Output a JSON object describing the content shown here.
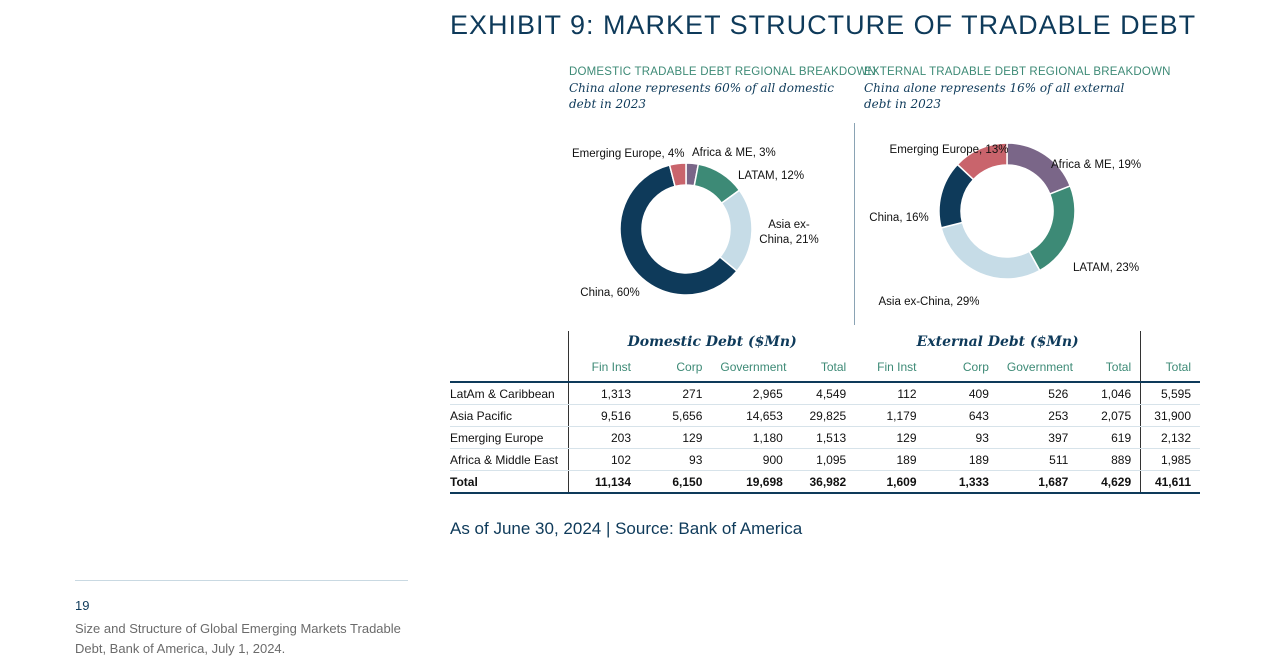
{
  "title": "EXHIBIT 9: MARKET STRUCTURE OF TRADABLE DEBT",
  "colors": {
    "navy": "#0e3a5a",
    "teal": "#3d8a76",
    "lightblue": "#c6dce7",
    "pink": "#c9646c",
    "purple": "#7a6688"
  },
  "charts": {
    "domestic": {
      "caption": "DOMESTIC TRADABLE DEBT REGIONAL BREAKDOWN",
      "subtitle": "China alone represents 60% of all domestic debt in 2023"
    },
    "external": {
      "caption": "EXTERNAL TRADABLE DEBT REGIONAL BREAKDOWN",
      "subtitle": "China alone represents 16% of all external debt in 2023"
    }
  },
  "chart_data": [
    {
      "type": "pie",
      "title": "DOMESTIC TRADABLE DEBT REGIONAL BREAKDOWN",
      "donut": true,
      "slices": [
        {
          "label": "Africa & ME, 3%",
          "value": 3,
          "color": "#7a6688"
        },
        {
          "label": "LATAM, 12%",
          "value": 12,
          "color": "#3d8a76"
        },
        {
          "label": "Asia ex-China, 21%",
          "value": 21,
          "color": "#c6dce7"
        },
        {
          "label": "China, 60%",
          "value": 60,
          "color": "#0e3a5a"
        },
        {
          "label": "Emerging Europe, 4%",
          "value": 4,
          "color": "#c9646c"
        }
      ]
    },
    {
      "type": "pie",
      "title": "EXTERNAL TRADABLE DEBT REGIONAL BREAKDOWN",
      "donut": true,
      "slices": [
        {
          "label": "Africa & ME, 19%",
          "value": 19,
          "color": "#7a6688"
        },
        {
          "label": "LATAM, 23%",
          "value": 23,
          "color": "#3d8a76"
        },
        {
          "label": "Asia ex-China, 29%",
          "value": 29,
          "color": "#c6dce7"
        },
        {
          "label": "China, 16%",
          "value": 16,
          "color": "#0e3a5a"
        },
        {
          "label": "Emerging Europe, 13%",
          "value": 13,
          "color": "#c9646c"
        }
      ]
    }
  ],
  "table": {
    "group_headers": {
      "domestic": "Domestic Debt ($Mn)",
      "external": "External Debt ($Mn)"
    },
    "columns": [
      "Fin Inst",
      "Corp",
      "Government",
      "Total",
      "Fin Inst",
      "Corp",
      "Government",
      "Total",
      "Total"
    ],
    "rows": [
      {
        "label": "LatAm & Caribbean",
        "values": [
          "1,313",
          "271",
          "2,965",
          "4,549",
          "112",
          "409",
          "526",
          "1,046",
          "5,595"
        ]
      },
      {
        "label": "Asia Pacific",
        "values": [
          "9,516",
          "5,656",
          "14,653",
          "29,825",
          "1,179",
          "643",
          "253",
          "2,075",
          "31,900"
        ]
      },
      {
        "label": "Emerging Europe",
        "values": [
          "203",
          "129",
          "1,180",
          "1,513",
          "129",
          "93",
          "397",
          "619",
          "2,132"
        ]
      },
      {
        "label": "Africa & Middle East",
        "values": [
          "102",
          "93",
          "900",
          "1,095",
          "189",
          "189",
          "511",
          "889",
          "1,985"
        ]
      }
    ],
    "total_row": {
      "label": "Total",
      "values": [
        "11,134",
        "6,150",
        "19,698",
        "36,982",
        "1,609",
        "1,333",
        "1,687",
        "4,629",
        "41,611"
      ]
    }
  },
  "source": "As of June 30, 2024 | Source: Bank of America",
  "footnote": {
    "number": "19",
    "text": "Size and Structure of Global Emerging Markets Tradable Debt, Bank of America, July 1, 2024."
  }
}
